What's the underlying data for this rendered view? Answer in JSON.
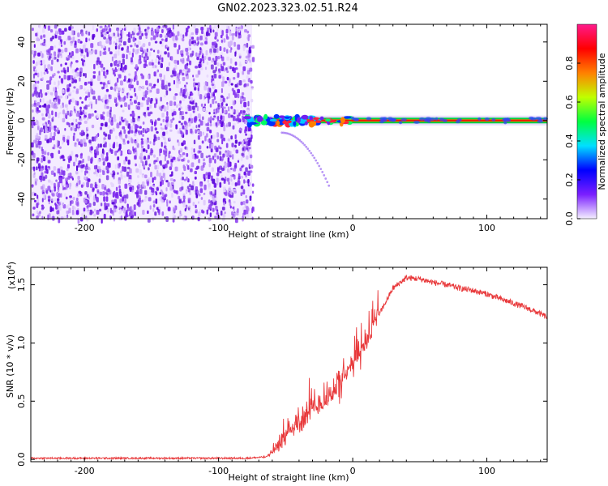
{
  "title": "GN02.2023.323.02.51.R24",
  "chart_data": [
    {
      "type": "heatmap",
      "xlabel": "Height of straight line (km)",
      "ylabel": "Frequency (Hz)",
      "xlim": [
        -240,
        145
      ],
      "ylim": [
        -50,
        49
      ],
      "xticks": [
        -200,
        -100,
        0,
        100
      ],
      "yticks": [
        -40,
        -20,
        0,
        20,
        40
      ],
      "noise_region_x": [
        -240,
        -75
      ],
      "signal_line": {
        "x_start": -80,
        "x_end": 145,
        "frequency": 0
      },
      "colorbar": {
        "label": "Normalized spectral amplitude",
        "range": [
          0,
          1
        ],
        "ticks": [
          "0.0",
          "0.2",
          "0.4",
          "0.6",
          "0.8"
        ],
        "tick_values": [
          0.0,
          0.2,
          0.4,
          0.6,
          0.8
        ],
        "colors": [
          "#f5f0ff",
          "#7a1fff",
          "#0000ff",
          "#00e0ff",
          "#00ff40",
          "#c0ff00",
          "#ff8000",
          "#ff0000",
          "#ff1a8c"
        ]
      }
    },
    {
      "type": "line",
      "xlabel": "Height of straight line (km)",
      "ylabel": "SNR (10 * v/v)",
      "scale_label": "(x10",
      "scale_exponent": "4",
      "xlim": [
        -240,
        145
      ],
      "ylim": [
        -0.02,
        1.65
      ],
      "xticks": [
        -200,
        -100,
        0,
        100
      ],
      "yticks": [
        "0.0",
        "0.5",
        "1.0",
        "1.5"
      ],
      "ytick_values": [
        0.0,
        0.5,
        1.0,
        1.5
      ],
      "color": "#e8383a",
      "series": [
        {
          "x": [
            -240,
            -150,
            -80,
            -65,
            -60,
            -55,
            -50,
            -45,
            -40,
            -30,
            -20,
            -10,
            0,
            10,
            20,
            30,
            40,
            50,
            60,
            70,
            80,
            90,
            100,
            110,
            120,
            130,
            140,
            145
          ],
          "values": [
            0.01,
            0.01,
            0.01,
            0.02,
            0.05,
            0.12,
            0.2,
            0.26,
            0.3,
            0.4,
            0.5,
            0.62,
            0.8,
            1.0,
            1.25,
            1.47,
            1.56,
            1.55,
            1.52,
            1.5,
            1.47,
            1.45,
            1.42,
            1.38,
            1.34,
            1.3,
            1.25,
            1.22
          ]
        }
      ]
    }
  ]
}
